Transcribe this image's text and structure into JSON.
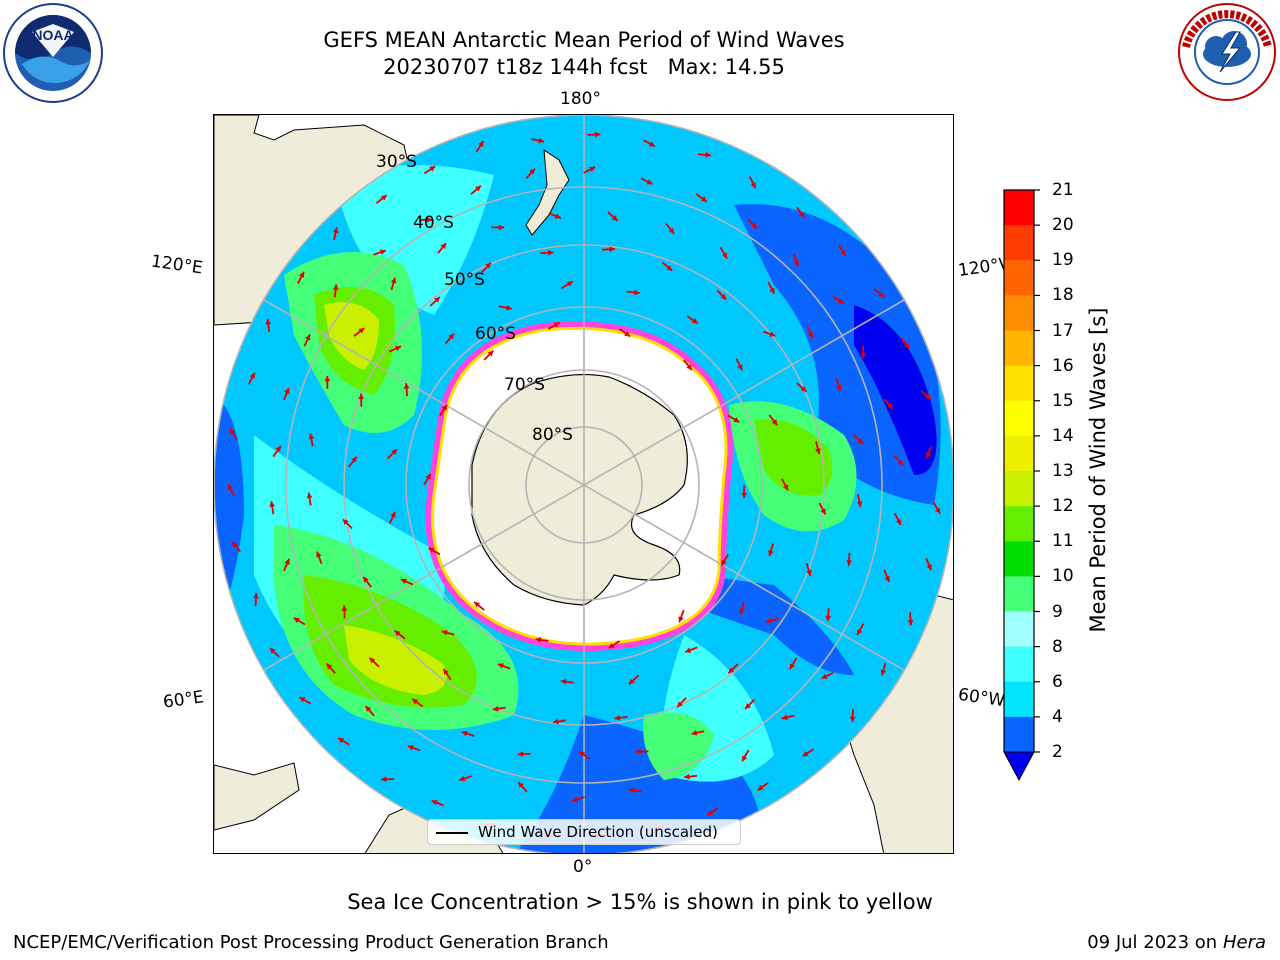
{
  "title": {
    "line1": "GEFS MEAN Antarctic Mean Period of Wind Waves",
    "line2": "20230707 t18z 144h fcst   Max: 14.55"
  },
  "logos": {
    "noara_text": "NOAA",
    "noaa_ring": "NATIONAL OCEANIC AND ATMOSPHERIC ADMINISTRATION · U.S. DEPARTMENT OF COMMERCE",
    "nws_ring": "NATIONAL WEATHER SERVICE"
  },
  "map": {
    "projection": "south polar stereographic",
    "longitude_labels": {
      "top": "180°",
      "bottom": "0°",
      "upper_left": "120°E",
      "upper_right": "120°W",
      "lower_left": "60°E",
      "lower_right": "60°W"
    },
    "latitude_labels": [
      "30°S",
      "40°S",
      "50°S",
      "60°S",
      "70°S",
      "80°S"
    ],
    "legend_label": "Wind Wave Direction (unscaled)",
    "colors": {
      "land": "#efedd9",
      "ocean_2_4": "#0a64ff",
      "grid": "#b4b4b4",
      "vector": "#e00000",
      "ice": "#ff44dd"
    }
  },
  "colorbar": {
    "label": "Mean Period of Wind Waves [s]",
    "ticks": [
      "2",
      "4",
      "6",
      "8",
      "9",
      "10",
      "11",
      "12",
      "13",
      "14",
      "15",
      "16",
      "17",
      "18",
      "19",
      "20",
      "21"
    ],
    "colors": [
      "#0000f0",
      "#0a64ff",
      "#00e4ff",
      "#40ffff",
      "#a0ffff",
      "#44ff77",
      "#00e000",
      "#66ee00",
      "#c8f000",
      "#eef000",
      "#ffff00",
      "#ffe000",
      "#ffb400",
      "#ff8c00",
      "#ff6400",
      "#ff3c00",
      "#ff0000"
    ],
    "extend": "min"
  },
  "footer": {
    "caption": "Sea Ice Concentration > 15% is shown in pink to yellow",
    "left": "NCEP/EMC/Verification Post Processing Product Generation Branch",
    "right_prefix": "09 Jul 2023 on ",
    "right_machine": "Hera"
  }
}
